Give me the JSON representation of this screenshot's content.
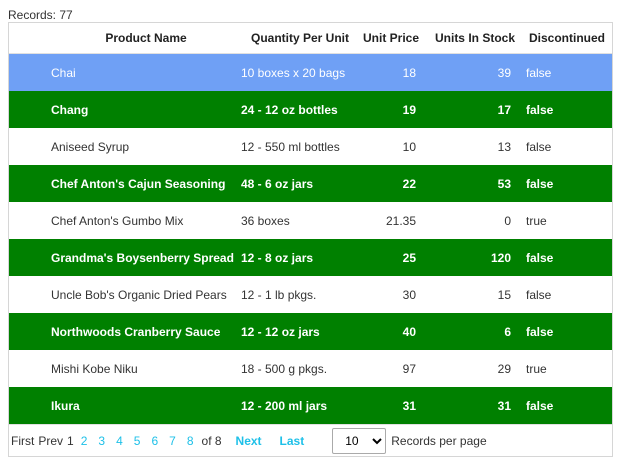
{
  "records_label": "Records:",
  "records_count": "77",
  "columns": {
    "name": "Product Name",
    "qty": "Quantity Per Unit",
    "price": "Unit Price",
    "stock": "Units In Stock",
    "disc": "Discontinued"
  },
  "rows": [
    {
      "name": "Chai",
      "qty": "10 boxes x 20 bags",
      "price": "18",
      "stock": "39",
      "disc": "false"
    },
    {
      "name": "Chang",
      "qty": "24 - 12 oz bottles",
      "price": "19",
      "stock": "17",
      "disc": "false"
    },
    {
      "name": "Aniseed Syrup",
      "qty": "12 - 550 ml bottles",
      "price": "10",
      "stock": "13",
      "disc": "false"
    },
    {
      "name": "Chef Anton's Cajun Seasoning",
      "qty": "48 - 6 oz jars",
      "price": "22",
      "stock": "53",
      "disc": "false"
    },
    {
      "name": "Chef Anton's Gumbo Mix",
      "qty": "36 boxes",
      "price": "21.35",
      "stock": "0",
      "disc": "true"
    },
    {
      "name": "Grandma's Boysenberry Spread",
      "qty": "12 - 8 oz jars",
      "price": "25",
      "stock": "120",
      "disc": "false"
    },
    {
      "name": "Uncle Bob's Organic Dried Pears",
      "qty": "12 - 1 lb pkgs.",
      "price": "30",
      "stock": "15",
      "disc": "false"
    },
    {
      "name": "Northwoods Cranberry Sauce",
      "qty": "12 - 12 oz jars",
      "price": "40",
      "stock": "6",
      "disc": "false"
    },
    {
      "name": "Mishi Kobe Niku",
      "qty": "18 - 500 g pkgs.",
      "price": "97",
      "stock": "29",
      "disc": "true"
    },
    {
      "name": "Ikura",
      "qty": "12 - 200 ml jars",
      "price": "31",
      "stock": "31",
      "disc": "false"
    }
  ],
  "pager": {
    "first": "First",
    "prev": "Prev",
    "pages": [
      "1",
      "2",
      "3",
      "4",
      "5",
      "6",
      "7",
      "8"
    ],
    "current": "1",
    "of_label": "of 8",
    "next": "Next",
    "last": "Last",
    "page_size": "10",
    "page_size_options": [
      "10"
    ],
    "per_page_label": "Records per page"
  },
  "colors": {
    "selected_row": "#6fa0f5",
    "alt_row": "#008000",
    "link": "#1ec0e8"
  }
}
